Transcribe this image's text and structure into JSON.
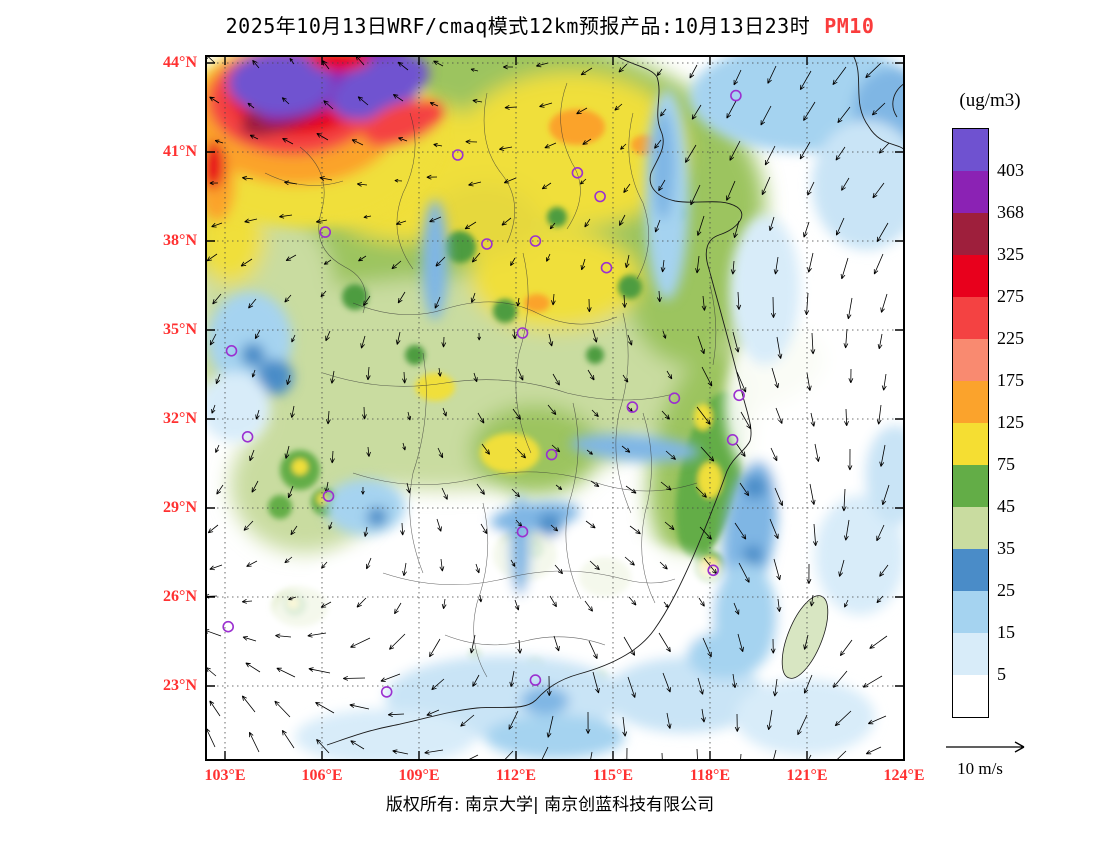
{
  "title": {
    "main": "2025年10月13日WRF/cmaq模式12km预报产品:10月13日23时",
    "pollutant": "PM10"
  },
  "colorbar": {
    "unit_label": "(ug/m3)",
    "tick_values": [
      "403",
      "368",
      "325",
      "275",
      "225",
      "175",
      "125",
      "75",
      "45",
      "35",
      "25",
      "15",
      "5"
    ],
    "colors_top_to_bottom": [
      "#6F52D0",
      "#8B22B4",
      "#9E1F3C",
      "#E8001C",
      "#F44242",
      "#F98A70",
      "#FBA32C",
      "#F5DE32",
      "#63AD47",
      "#C9DCA0",
      "#4A8CC8",
      "#A5D3F0",
      "#D8ECF9",
      "#FFFFFF"
    ]
  },
  "axes": {
    "lat_tick_labels": [
      "44°N",
      "41°N",
      "38°N",
      "35°N",
      "32°N",
      "29°N",
      "26°N",
      "23°N"
    ],
    "lat_tick_degrees": [
      44,
      41,
      38,
      35,
      32,
      29,
      26,
      23
    ],
    "lon_tick_labels": [
      "103°E",
      "106°E",
      "109°E",
      "112°E",
      "115°E",
      "118°E",
      "121°E",
      "124°E"
    ],
    "lon_tick_degrees": [
      103,
      106,
      109,
      112,
      115,
      118,
      121,
      124
    ],
    "tick_label_color": "#FF3131"
  },
  "wind_reference": {
    "label": "10 m/s"
  },
  "footer": {
    "text": "版权所有: 南京大学| 南京创蓝科技有限公司"
  },
  "chart_data": {
    "type": "heatmap",
    "title": "2025年10月13日WRF/cmaq模式12km预报产品:10月13日23时 PM10",
    "variable": "PM10",
    "unit": "ug/m3",
    "model": "WRF/cmaq 12km",
    "valid_time": "10月13日23时",
    "lon_range_deg_e": [
      103,
      124
    ],
    "lat_range_deg_n": [
      23,
      44
    ],
    "color_scale_levels_ug_m3": [
      5,
      15,
      25,
      35,
      45,
      75,
      125,
      175,
      225,
      275,
      325,
      368,
      403
    ],
    "color_scale_colors_low_to_high": [
      "#FFFFFF",
      "#D8ECF9",
      "#A5D3F0",
      "#4A8CC8",
      "#C9DCA0",
      "#63AD47",
      "#F5DE32",
      "#FBA32C",
      "#F98A70",
      "#F44242",
      "#E8001C",
      "#9E1F3C",
      "#8B22B4",
      "#6F52D0"
    ],
    "wind_reference_m_s": 10,
    "station_markers_lonlat": [
      [
        118.8,
        42.9
      ],
      [
        110.2,
        40.9
      ],
      [
        113.9,
        40.3
      ],
      [
        114.6,
        39.5
      ],
      [
        106.1,
        38.3
      ],
      [
        111.1,
        37.9
      ],
      [
        112.6,
        38.0
      ],
      [
        114.8,
        37.1
      ],
      [
        112.2,
        34.9
      ],
      [
        103.2,
        34.3
      ],
      [
        115.6,
        32.4
      ],
      [
        116.9,
        32.7
      ],
      [
        118.9,
        32.8
      ],
      [
        118.7,
        31.3
      ],
      [
        113.1,
        30.8
      ],
      [
        103.7,
        31.4
      ],
      [
        106.2,
        29.4
      ],
      [
        112.2,
        28.2
      ],
      [
        118.1,
        26.9
      ],
      [
        103.1,
        25.0
      ],
      [
        108.0,
        22.8
      ],
      [
        112.6,
        23.2
      ]
    ],
    "field_regions": [
      {
        "region": "northwest corner (103-108E, 41-44N)",
        "pm10_ug_m3": "275 to >403, dust plume with purple/dark-red core ringed by red, orange and yellow"
      },
      {
        "region": "north china plain (106-118E, 34-42N)",
        "pm10_ug_m3": "45-175, broad yellow/green field with orange spots"
      },
      {
        "region": "yangtze basin (105-118E, 28-34N)",
        "pm10_ug_m3": "15-75, pale green with yellow patches and blue river streaks"
      },
      {
        "region": "south china (23-28N)",
        "pm10_ug_m3": "0-35, white/light blue with scattered small green-yellow spots"
      },
      {
        "region": "east china seas (119-124E)",
        "pm10_ug_m3": "0-25, white to light blue with strong wind vectors"
      }
    ]
  }
}
